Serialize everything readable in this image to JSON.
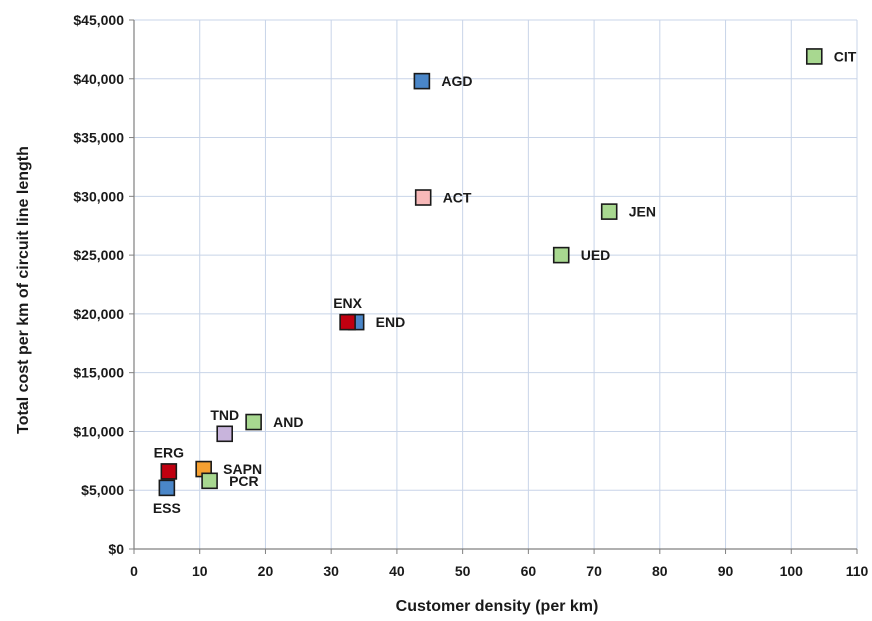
{
  "chart_data": {
    "type": "scatter",
    "title": "",
    "xlabel": "Customer density (per km)",
    "ylabel": "Total cost per km of circuit line length",
    "xlim": [
      0,
      110
    ],
    "ylim": [
      0,
      45000
    ],
    "x_ticks": [
      0,
      10,
      20,
      30,
      40,
      50,
      60,
      70,
      80,
      90,
      100,
      110
    ],
    "y_ticks": [
      0,
      5000,
      10000,
      15000,
      20000,
      25000,
      30000,
      35000,
      40000,
      45000
    ],
    "x_tick_labels": [
      "0",
      "10",
      "20",
      "30",
      "40",
      "50",
      "60",
      "70",
      "80",
      "90",
      "100",
      "110"
    ],
    "y_tick_labels": [
      "$0",
      "$5,000",
      "$10,000",
      "$15,000",
      "$20,000",
      "$25,000",
      "$30,000",
      "$35,000",
      "$40,000",
      "$45,000"
    ],
    "grid": true,
    "legend": "none",
    "points": [
      {
        "label": "CIT",
        "x": 103.5,
        "y": 41900,
        "color": "#a8d890",
        "label_pos": "right"
      },
      {
        "label": "AGD",
        "x": 43.8,
        "y": 39800,
        "color": "#4a86c8",
        "label_pos": "right"
      },
      {
        "label": "ACT",
        "x": 44.0,
        "y": 29900,
        "color": "#f7b8b8",
        "label_pos": "right"
      },
      {
        "label": "JEN",
        "x": 72.3,
        "y": 28700,
        "color": "#a8d890",
        "label_pos": "right"
      },
      {
        "label": "UED",
        "x": 65.0,
        "y": 25000,
        "color": "#a8d890",
        "label_pos": "right"
      },
      {
        "label": "END",
        "x": 33.8,
        "y": 19300,
        "color": "#4a86c8",
        "label_pos": "right"
      },
      {
        "label": "ENX",
        "x": 32.5,
        "y": 19300,
        "color": "#c00010",
        "label_pos": "above"
      },
      {
        "label": "AND",
        "x": 18.2,
        "y": 10800,
        "color": "#a8d890",
        "label_pos": "right"
      },
      {
        "label": "TND",
        "x": 13.8,
        "y": 9800,
        "color": "#c8b4dc",
        "label_pos": "above"
      },
      {
        "label": "ERG",
        "x": 5.3,
        "y": 6600,
        "color": "#c00010",
        "label_pos": "above"
      },
      {
        "label": "SAPN",
        "x": 10.6,
        "y": 6800,
        "color": "#f6a030",
        "label_pos": "right"
      },
      {
        "label": "PCR",
        "x": 11.5,
        "y": 5800,
        "color": "#a8d890",
        "label_pos": "right"
      },
      {
        "label": "ESS",
        "x": 5.0,
        "y": 5200,
        "color": "#4a86c8",
        "label_pos": "below"
      }
    ]
  }
}
